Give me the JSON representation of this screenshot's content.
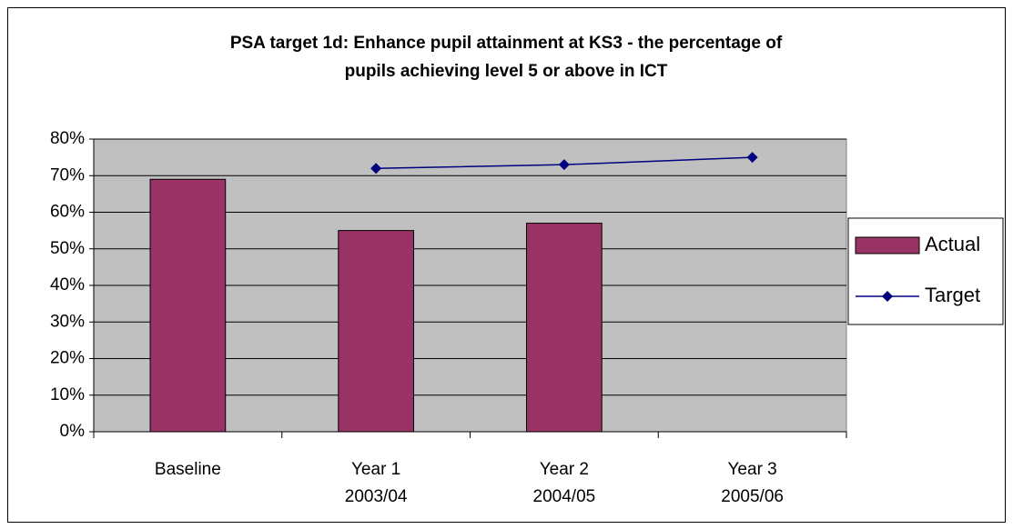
{
  "chart_data": {
    "type": "bar+line",
    "title": [
      "PSA target 1d: Enhance pupil attainment at KS3 - the percentage of",
      "pupils achieving level 5 or above in ICT"
    ],
    "categories": [
      [
        "Baseline"
      ],
      [
        "Year 1",
        "2003/04"
      ],
      [
        "Year 2",
        "2004/05"
      ],
      [
        "Year 3",
        "2005/06"
      ]
    ],
    "series": [
      {
        "name": "Actual",
        "type": "bar",
        "color": "#993366",
        "values": [
          69,
          55,
          57,
          null
        ]
      },
      {
        "name": "Target",
        "type": "line",
        "color": "#000080",
        "values": [
          null,
          72,
          73,
          75
        ]
      }
    ],
    "ylim": [
      0,
      80
    ],
    "yticks": [
      {
        "value": 0,
        "label": "0%"
      },
      {
        "value": 10,
        "label": "10%"
      },
      {
        "value": 20,
        "label": "20%"
      },
      {
        "value": 30,
        "label": "30%"
      },
      {
        "value": 40,
        "label": "40%"
      },
      {
        "value": 50,
        "label": "50%"
      },
      {
        "value": 60,
        "label": "60%"
      },
      {
        "value": 70,
        "label": "70%"
      },
      {
        "value": 80,
        "label": "80%"
      }
    ],
    "grid": true,
    "legend": "right"
  }
}
